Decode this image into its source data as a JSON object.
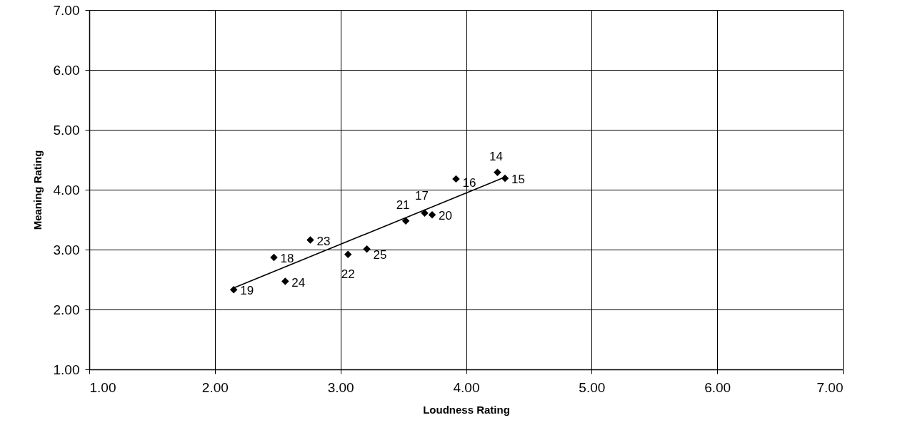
{
  "chart_data": {
    "type": "scatter",
    "xlabel": "Loudness Rating",
    "ylabel": "Meaning Rating",
    "series": [
      {
        "color": "#000000",
        "marker": "diamond",
        "x": [
          4.25,
          4.31,
          3.92,
          3.67,
          2.47,
          2.15,
          3.73,
          3.52,
          3.06,
          2.76,
          2.56,
          3.21
        ],
        "values": [
          4.29,
          4.19,
          4.18,
          3.61,
          2.87,
          2.33,
          3.58,
          3.48,
          2.92,
          3.16,
          2.47,
          3.01
        ]
      },
      {
        "type": "line",
        "color": "#000000",
        "x": [
          2.15,
          4.31
        ],
        "values": [
          2.36,
          4.21
        ]
      }
    ],
    "annotations": [
      {
        "text": "14",
        "x": 4.25,
        "y": 4.29
      },
      {
        "text": "15",
        "x": 4.31,
        "y": 4.19
      },
      {
        "text": "16",
        "x": 3.92,
        "y": 4.18
      },
      {
        "text": "17",
        "x": 3.67,
        "y": 3.61
      },
      {
        "text": "18",
        "x": 2.47,
        "y": 2.87
      },
      {
        "text": "19",
        "x": 2.15,
        "y": 2.33
      },
      {
        "text": "20",
        "x": 3.73,
        "y": 3.58
      },
      {
        "text": "21",
        "x": 3.52,
        "y": 3.48
      },
      {
        "text": "22",
        "x": 3.06,
        "y": 2.92
      },
      {
        "text": "23",
        "x": 2.76,
        "y": 3.16
      },
      {
        "text": "24",
        "x": 2.56,
        "y": 2.47
      },
      {
        "text": "25",
        "x": 3.21,
        "y": 3.01
      }
    ],
    "xlim": [
      1,
      7
    ],
    "ylim": [
      1,
      7
    ],
    "xticks": [
      {
        "value": 1,
        "label": "1.00"
      },
      {
        "value": 2,
        "label": "2.00"
      },
      {
        "value": 3,
        "label": "3.00"
      },
      {
        "value": 4,
        "label": "4.00"
      },
      {
        "value": 5,
        "label": "5.00"
      },
      {
        "value": 6,
        "label": "6.00"
      },
      {
        "value": 7,
        "label": "7.00"
      }
    ],
    "yticks": [
      {
        "value": 1,
        "label": "1.00"
      },
      {
        "value": 2,
        "label": "2.00"
      },
      {
        "value": 3,
        "label": "3.00"
      },
      {
        "value": 4,
        "label": "4.00"
      },
      {
        "value": 5,
        "label": "5.00"
      },
      {
        "value": 6,
        "label": "6.00"
      },
      {
        "value": 7,
        "label": "7.00"
      }
    ],
    "grid": true
  }
}
